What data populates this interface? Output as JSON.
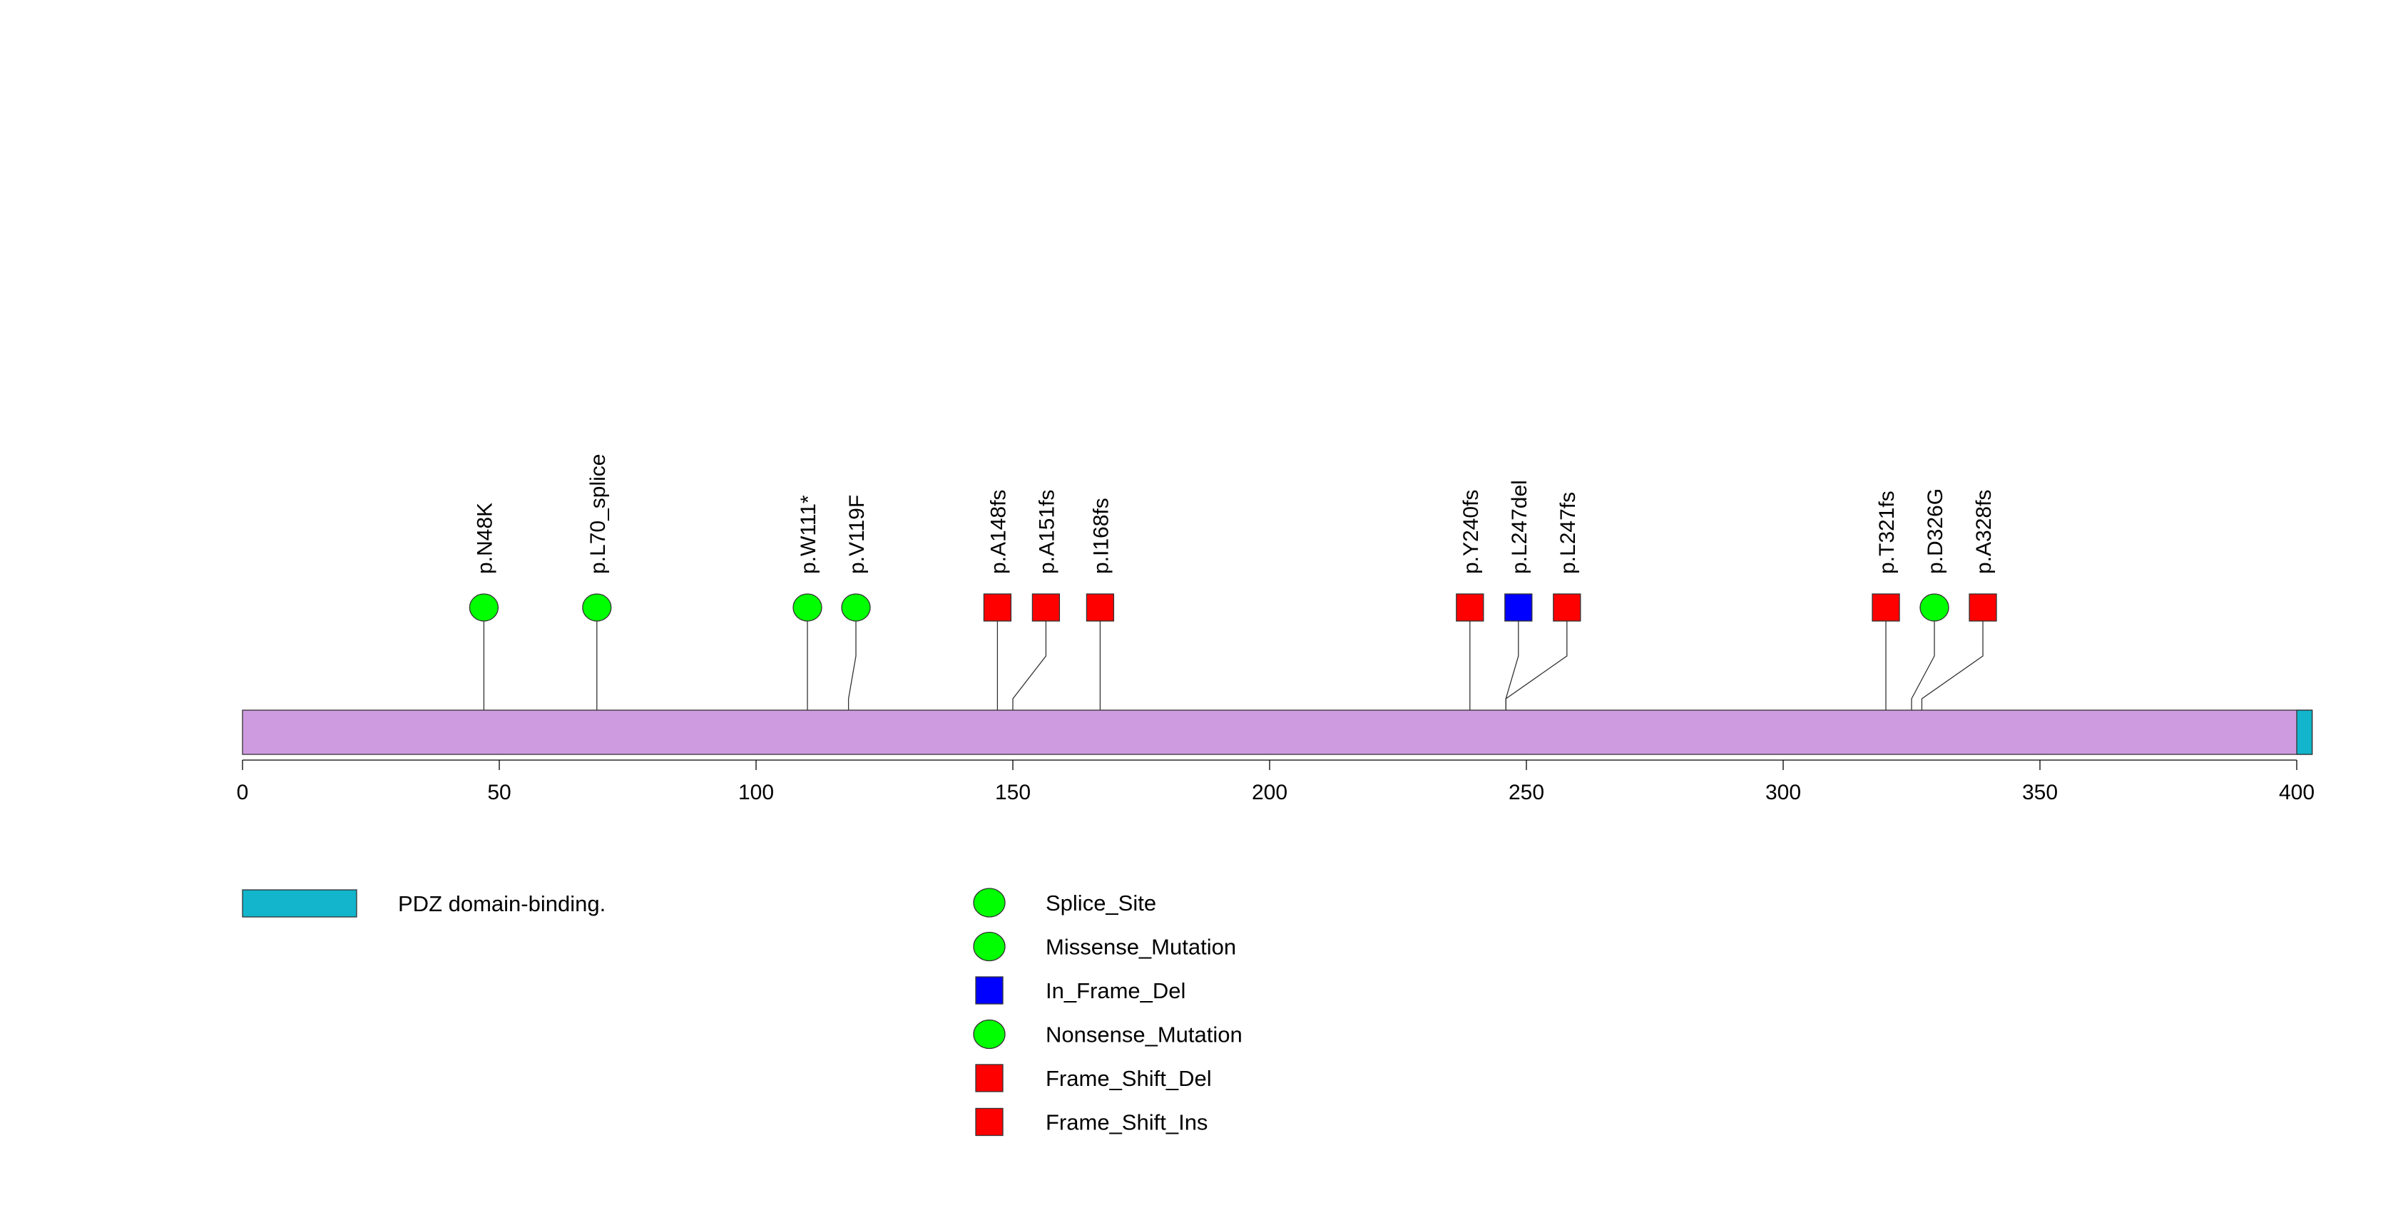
{
  "chart_data": {
    "type": "lollipop",
    "protein_length": 403,
    "backbone_color": "#cf9be0",
    "axis": {
      "ticks": [
        0,
        50,
        100,
        150,
        200,
        250,
        300,
        350,
        400
      ]
    },
    "domains": [
      {
        "name": "PDZ domain-binding.",
        "start": 400,
        "end": 403,
        "color": "#12b5cb"
      }
    ],
    "mutations": [
      {
        "label": "p.N48K",
        "position": 47,
        "type": "Missense_Mutation"
      },
      {
        "label": "p.L70_splice",
        "position": 69,
        "type": "Splice_Site"
      },
      {
        "label": "p.W111*",
        "position": 110,
        "type": "Nonsense_Mutation"
      },
      {
        "label": "p.V119F",
        "position": 118,
        "type": "Missense_Mutation"
      },
      {
        "label": "p.A148fs",
        "position": 147,
        "type": "Frame_Shift_Del"
      },
      {
        "label": "p.A151fs",
        "position": 150,
        "type": "Frame_Shift_Del"
      },
      {
        "label": "p.I168fs",
        "position": 167,
        "type": "Frame_Shift_Del"
      },
      {
        "label": "p.Y240fs",
        "position": 239,
        "type": "Frame_Shift_Del"
      },
      {
        "label": "p.L247del",
        "position": 246,
        "type": "In_Frame_Del"
      },
      {
        "label": "p.L247fs",
        "position": 246,
        "type": "Frame_Shift_Del"
      },
      {
        "label": "p.T321fs",
        "position": 320,
        "type": "Frame_Shift_Del"
      },
      {
        "label": "p.D326G",
        "position": 325,
        "type": "Missense_Mutation"
      },
      {
        "label": "p.A328fs",
        "position": 327,
        "type": "Frame_Shift_Ins"
      }
    ],
    "legend": {
      "domains": [
        {
          "label": "PDZ domain-binding.",
          "color": "#12b5cb"
        }
      ],
      "mutation_types": [
        {
          "label": "Splice_Site",
          "shape": "circle",
          "color": "#00ff00"
        },
        {
          "label": "Missense_Mutation",
          "shape": "circle",
          "color": "#00ff00"
        },
        {
          "label": "In_Frame_Del",
          "shape": "square",
          "color": "#0000ff"
        },
        {
          "label": "Nonsense_Mutation",
          "shape": "circle",
          "color": "#00ff00"
        },
        {
          "label": "Frame_Shift_Del",
          "shape": "square",
          "color": "#ff0000"
        },
        {
          "label": "Frame_Shift_Ins",
          "shape": "square",
          "color": "#ff0000"
        }
      ]
    }
  }
}
